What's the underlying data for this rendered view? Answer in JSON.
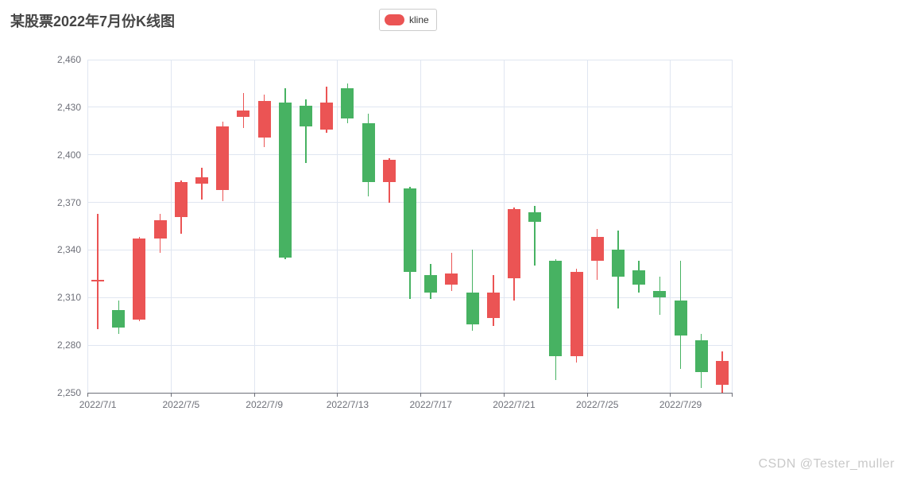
{
  "title": {
    "text": "某股票2022年7月份K线图"
  },
  "legend": {
    "label": "kline",
    "marker_color": "#eb5454",
    "border_color": "#cccccc"
  },
  "watermark": {
    "text": "CSDN @Tester_muller"
  },
  "colors": {
    "up": "#eb5454",
    "down": "#47b262",
    "grid": "#E0E6F1",
    "axis_line": "#6E7079",
    "axis_label": "#6E7079",
    "title_text": "#464646"
  },
  "chart_data": {
    "type": "candlestick",
    "title": "某股票2022年7月份K线图",
    "series_name": "kline",
    "legend_position": "top-center",
    "grid": true,
    "ylim": [
      2250,
      2460
    ],
    "y_ticks": [
      2250,
      2280,
      2310,
      2340,
      2370,
      2400,
      2430,
      2460
    ],
    "y_tick_labels": [
      "2,250",
      "2,280",
      "2,310",
      "2,340",
      "2,370",
      "2,400",
      "2,430",
      "2,460"
    ],
    "x_label_every": 4,
    "x_tick_labels": [
      "2022/7/1",
      "2022/7/5",
      "2022/7/9",
      "2022/7/13",
      "2022/7/17",
      "2022/7/21",
      "2022/7/25",
      "2022/7/29"
    ],
    "up_color": "#eb5454",
    "down_color": "#47b262",
    "candles": [
      {
        "date": "2022/7/1",
        "open": 2320,
        "close": 2321,
        "low": 2290,
        "high": 2363
      },
      {
        "date": "2022/7/2",
        "open": 2302,
        "close": 2291,
        "low": 2287,
        "high": 2308
      },
      {
        "date": "2022/7/3",
        "open": 2296,
        "close": 2347,
        "low": 2295,
        "high": 2348
      },
      {
        "date": "2022/7/4",
        "open": 2347,
        "close": 2359,
        "low": 2338,
        "high": 2363
      },
      {
        "date": "2022/7/5",
        "open": 2361,
        "close": 2383,
        "low": 2350,
        "high": 2384
      },
      {
        "date": "2022/7/6",
        "open": 2382,
        "close": 2386,
        "low": 2372,
        "high": 2392
      },
      {
        "date": "2022/7/7",
        "open": 2378,
        "close": 2418,
        "low": 2371,
        "high": 2421
      },
      {
        "date": "2022/7/8",
        "open": 2424,
        "close": 2428,
        "low": 2417,
        "high": 2439
      },
      {
        "date": "2022/7/9",
        "open": 2411,
        "close": 2434,
        "low": 2405,
        "high": 2438
      },
      {
        "date": "2022/7/10",
        "open": 2433,
        "close": 2335,
        "low": 2334,
        "high": 2442
      },
      {
        "date": "2022/7/11",
        "open": 2431,
        "close": 2418,
        "low": 2395,
        "high": 2435
      },
      {
        "date": "2022/7/12",
        "open": 2416,
        "close": 2433,
        "low": 2414,
        "high": 2443
      },
      {
        "date": "2022/7/13",
        "open": 2442,
        "close": 2423,
        "low": 2420,
        "high": 2445
      },
      {
        "date": "2022/7/14",
        "open": 2420,
        "close": 2383,
        "low": 2374,
        "high": 2426
      },
      {
        "date": "2022/7/15",
        "open": 2383,
        "close": 2397,
        "low": 2370,
        "high": 2398
      },
      {
        "date": "2022/7/16",
        "open": 2379,
        "close": 2326,
        "low": 2309,
        "high": 2380
      },
      {
        "date": "2022/7/17",
        "open": 2324,
        "close": 2313,
        "low": 2309,
        "high": 2331
      },
      {
        "date": "2022/7/18",
        "open": 2318,
        "close": 2325,
        "low": 2314,
        "high": 2338
      },
      {
        "date": "2022/7/19",
        "open": 2313,
        "close": 2293,
        "low": 2289,
        "high": 2340
      },
      {
        "date": "2022/7/20",
        "open": 2297,
        "close": 2313,
        "low": 2292,
        "high": 2324
      },
      {
        "date": "2022/7/21",
        "open": 2322,
        "close": 2366,
        "low": 2308,
        "high": 2367
      },
      {
        "date": "2022/7/22",
        "open": 2364,
        "close": 2358,
        "low": 2330,
        "high": 2368
      },
      {
        "date": "2022/7/23",
        "open": 2333,
        "close": 2273,
        "low": 2258,
        "high": 2334
      },
      {
        "date": "2022/7/24",
        "open": 2273,
        "close": 2326,
        "low": 2269,
        "high": 2328
      },
      {
        "date": "2022/7/25",
        "open": 2333,
        "close": 2348,
        "low": 2321,
        "high": 2353
      },
      {
        "date": "2022/7/26",
        "open": 2340,
        "close": 2323,
        "low": 2303,
        "high": 2352
      },
      {
        "date": "2022/7/27",
        "open": 2327,
        "close": 2318,
        "low": 2313,
        "high": 2333
      },
      {
        "date": "2022/7/28",
        "open": 2314,
        "close": 2310,
        "low": 2299,
        "high": 2323
      },
      {
        "date": "2022/7/29",
        "open": 2308,
        "close": 2286,
        "low": 2265,
        "high": 2333
      },
      {
        "date": "2022/7/30",
        "open": 2283,
        "close": 2263,
        "low": 2253,
        "high": 2287
      },
      {
        "date": "2022/7/31",
        "open": 2255,
        "close": 2270,
        "low": 2250,
        "high": 2276
      }
    ]
  }
}
